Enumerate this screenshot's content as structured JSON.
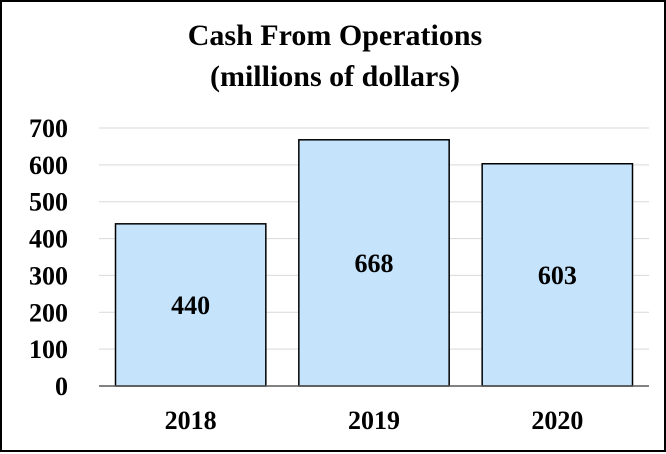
{
  "chart_data": {
    "type": "bar",
    "title_lines": [
      "Cash From Operations",
      "(millions of dollars)"
    ],
    "categories": [
      "2018",
      "2019",
      "2020"
    ],
    "values": [
      440,
      668,
      603
    ],
    "data_labels": [
      "440",
      "668",
      "603"
    ],
    "ylim": [
      0,
      700
    ],
    "yticks": [
      0,
      100,
      200,
      300,
      400,
      500,
      600,
      700
    ],
    "xlabel": "",
    "ylabel": "",
    "grid": true,
    "legend": "none",
    "colors": {
      "bar_fill": "#c5e3fb",
      "bar_edge": "#000000",
      "grid": "#d9d9d9"
    }
  }
}
